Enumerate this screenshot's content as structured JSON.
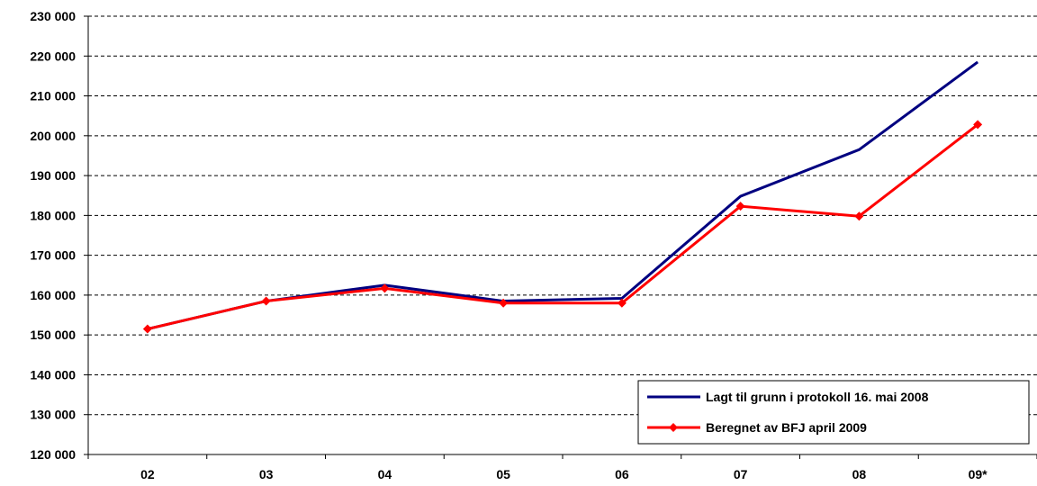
{
  "chart_data": {
    "type": "line",
    "categories": [
      "02",
      "03",
      "04",
      "05",
      "06",
      "07",
      "08",
      "09*"
    ],
    "ylim": [
      120000,
      230000
    ],
    "ytick_step": 10000,
    "yticks": [
      "120 000",
      "130 000",
      "140 000",
      "150 000",
      "160 000",
      "170 000",
      "180 000",
      "190 000",
      "200 000",
      "210 000",
      "220 000",
      "230 000"
    ],
    "grid": "horizontal-dashed",
    "legend_position": "bottom-right",
    "series": [
      {
        "name": "Lagt til grunn i protokoll 16. mai 2008",
        "color": "#000080",
        "marker": "none",
        "values": [
          151500,
          158500,
          162500,
          158500,
          159200,
          184800,
          196500,
          218500
        ]
      },
      {
        "name": "Beregnet av BFJ april 2009",
        "color": "#ff0000",
        "marker": "diamond",
        "values": [
          151500,
          158500,
          161700,
          158000,
          158000,
          182300,
          179800,
          202800
        ]
      }
    ]
  }
}
